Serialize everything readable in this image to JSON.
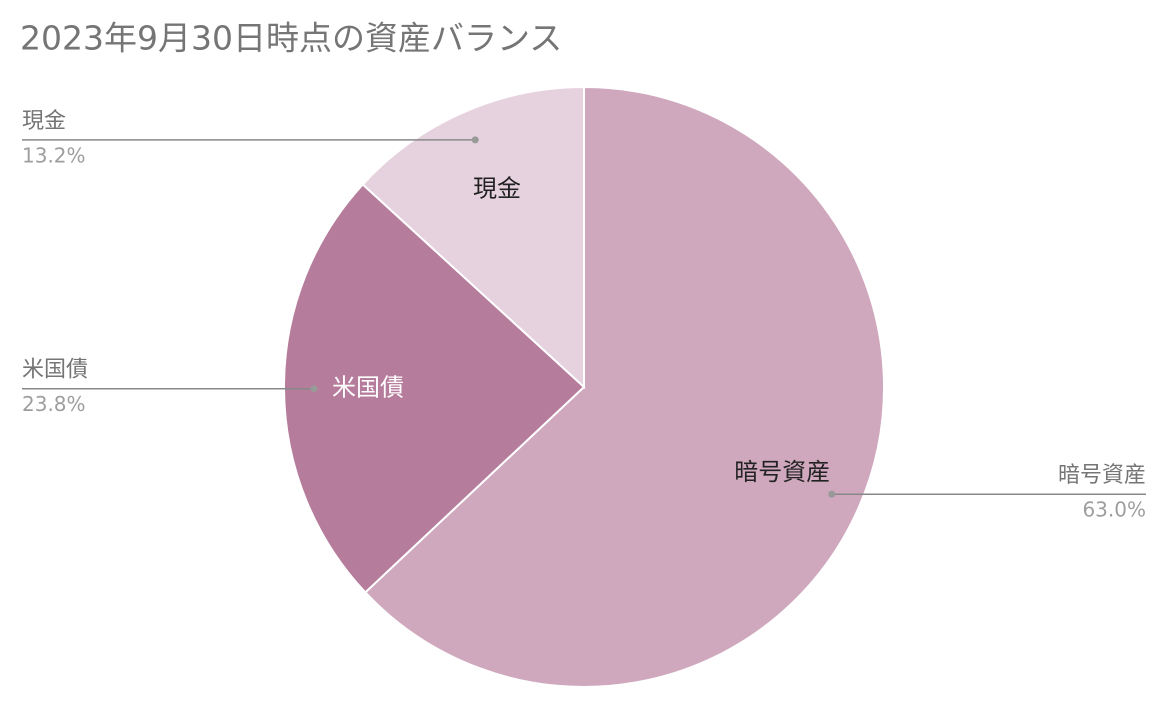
{
  "chart_data": {
    "type": "pie",
    "title": "2023年9月30日時点の資産バランス",
    "categories": [
      "暗号資産",
      "米国債",
      "現金"
    ],
    "values": [
      63.0,
      23.8,
      13.2
    ],
    "value_labels": [
      "63.0%",
      "23.8%",
      "13.2%"
    ],
    "colors": [
      "#cfa8bd",
      "#b67c9b",
      "#e6d2de"
    ]
  }
}
